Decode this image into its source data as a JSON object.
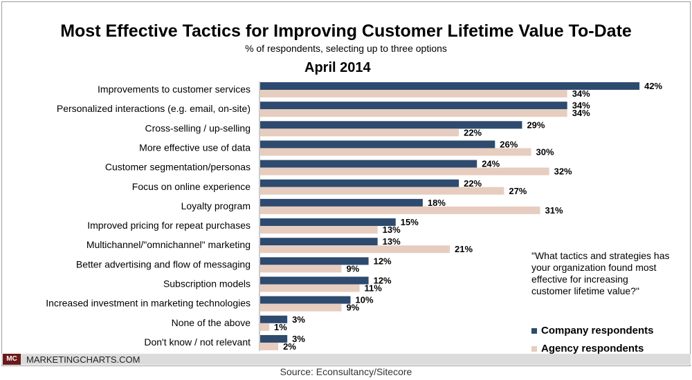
{
  "header": {
    "title": "Most Effective Tactics for Improving Customer Lifetime Value To-Date",
    "subtitle": "% of respondents, selecting up to three options",
    "period": "April 2014"
  },
  "note": {
    "question": "\"What tactics and strategies has your organization found most effective for increasing customer lifetime value?\""
  },
  "footer": {
    "logo": "MC",
    "brand": "MARKETINGCHARTS.COM",
    "source": "Source: Econsultancy/Sitecore"
  },
  "colors": {
    "company": "#2e4a6e",
    "agency": "#e7cdbf"
  },
  "chart_data": {
    "type": "bar",
    "orientation": "horizontal",
    "title": "Most Effective Tactics for Improving Customer Lifetime Value To-Date",
    "subtitle": "% of respondents, selecting up to three options",
    "categories": [
      "Improvements to customer services",
      "Personalized interactions (e.g. email, on-site)",
      "Cross-selling / up-selling",
      "More effective use of data",
      "Customer segmentation/personas",
      "Focus on online experience",
      "Loyalty program",
      "Improved pricing for repeat purchases",
      "Multichannel/\"omnichannel\" marketing",
      "Better advertising and flow of messaging",
      "Subscription models",
      "Increased investment in marketing technologies",
      "None of the above",
      "Don't know / not relevant"
    ],
    "series": [
      {
        "name": "Company respondents",
        "values": [
          42,
          34,
          29,
          26,
          24,
          22,
          18,
          15,
          13,
          12,
          12,
          10,
          3,
          3
        ]
      },
      {
        "name": "Agency respondents",
        "values": [
          34,
          34,
          22,
          30,
          32,
          27,
          31,
          13,
          21,
          9,
          11,
          9,
          1,
          2
        ]
      }
    ],
    "unit": "%",
    "xlim": [
      0,
      50
    ],
    "grid": false,
    "legend_position": "bottom-right"
  }
}
